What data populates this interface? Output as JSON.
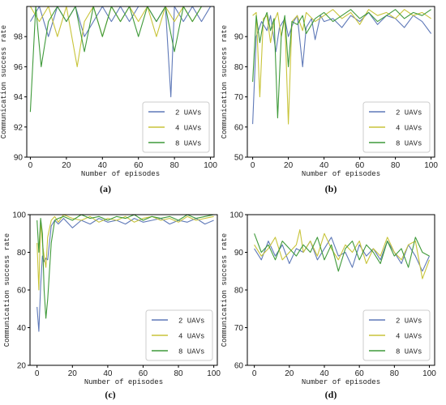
{
  "colors": {
    "2uav": "#5f79b8",
    "4uav": "#c8c43a",
    "8uav": "#3f9a3a"
  },
  "chart_data": [
    {
      "panel_label": "(a)",
      "type": "line",
      "xlabel": "Number of episodes",
      "ylabel": "Communication success rate",
      "xlim": [
        -2,
        102
      ],
      "ylim": [
        90,
        100
      ],
      "xticks": [
        0,
        20,
        40,
        60,
        80,
        100
      ],
      "yticks": [
        90,
        92,
        94,
        96,
        98
      ],
      "legend_loc": "lower-right",
      "series": [
        {
          "name": "2 UAVs",
          "color_key": "2uav",
          "x": [
            0,
            5,
            10,
            15,
            20,
            25,
            30,
            35,
            40,
            45,
            50,
            55,
            60,
            65,
            70,
            75,
            78,
            80,
            85,
            90,
            95,
            100
          ],
          "y": [
            99,
            100,
            98,
            100,
            99,
            100,
            98,
            99,
            100,
            99,
            100,
            99,
            100,
            100,
            99,
            100,
            94,
            100,
            99,
            100,
            99,
            100
          ]
        },
        {
          "name": "4 UAVs",
          "color_key": "4uav",
          "x": [
            0,
            5,
            10,
            15,
            20,
            26,
            30,
            35,
            40,
            45,
            50,
            55,
            60,
            65,
            70,
            75,
            80,
            85,
            90,
            95,
            100
          ],
          "y": [
            100,
            99,
            100,
            98,
            100,
            96,
            99,
            100,
            98,
            100,
            99,
            100,
            99,
            100,
            98,
            100,
            99,
            100,
            99,
            100,
            100
          ]
        },
        {
          "name": "8 UAVs",
          "color_key": "8uav",
          "x": [
            0,
            3,
            6,
            10,
            15,
            20,
            25,
            30,
            35,
            40,
            45,
            50,
            55,
            60,
            65,
            70,
            75,
            80,
            85,
            90,
            95,
            100
          ],
          "y": [
            93,
            100,
            96,
            99,
            100,
            99,
            100,
            97,
            100,
            98,
            100,
            99,
            100,
            98,
            100,
            99,
            100,
            97,
            100,
            99,
            100,
            100
          ]
        }
      ]
    },
    {
      "panel_label": "(b)",
      "type": "line",
      "xlabel": "Number of episodes",
      "ylabel": "Communication success rate",
      "xlim": [
        -3,
        102
      ],
      "ylim": [
        50,
        100
      ],
      "xticks": [
        0,
        20,
        40,
        60,
        80,
        100
      ],
      "yticks": [
        50,
        60,
        70,
        80,
        90
      ],
      "legend_loc": "lower-right",
      "series": [
        {
          "name": "2 UAVs",
          "color_key": "2uav",
          "x": [
            0,
            2,
            5,
            8,
            10,
            13,
            15,
            18,
            20,
            23,
            25,
            28,
            30,
            33,
            35,
            38,
            40,
            45,
            50,
            55,
            60,
            65,
            70,
            75,
            80,
            85,
            90,
            95,
            100
          ],
          "y": [
            61,
            90,
            95,
            92,
            97,
            85,
            93,
            96,
            90,
            95,
            97,
            80,
            93,
            96,
            89,
            97,
            95,
            96,
            93,
            97,
            95,
            98,
            94,
            97,
            96,
            93,
            97,
            95,
            91
          ]
        },
        {
          "name": "4 UAVs",
          "color_key": "4uav",
          "x": [
            0,
            2,
            4,
            6,
            8,
            10,
            12,
            14,
            16,
            18,
            20,
            22,
            25,
            28,
            30,
            35,
            40,
            45,
            50,
            55,
            60,
            65,
            70,
            75,
            80,
            85,
            90,
            95,
            100
          ],
          "y": [
            97,
            98,
            70,
            96,
            97,
            88,
            95,
            98,
            90,
            96,
            61,
            95,
            97,
            92,
            98,
            95,
            97,
            99,
            96,
            98,
            94,
            99,
            97,
            98,
            96,
            99,
            97,
            98,
            96
          ]
        },
        {
          "name": "8 UAVs",
          "color_key": "8uav",
          "x": [
            0,
            2,
            4,
            6,
            8,
            10,
            12,
            14,
            16,
            18,
            20,
            22,
            25,
            28,
            30,
            35,
            40,
            45,
            50,
            55,
            60,
            65,
            70,
            75,
            80,
            85,
            90,
            95,
            100
          ],
          "y": [
            75,
            97,
            88,
            95,
            98,
            92,
            96,
            63,
            90,
            97,
            80,
            95,
            94,
            97,
            91,
            96,
            98,
            95,
            97,
            99,
            96,
            98,
            95,
            97,
            99,
            96,
            98,
            97,
            99
          ]
        }
      ]
    },
    {
      "panel_label": "(c)",
      "type": "line",
      "xlabel": "Number of episodes",
      "ylabel": "Communication success rate",
      "xlim": [
        -4,
        102
      ],
      "ylim": [
        20,
        100
      ],
      "xticks": [
        0,
        20,
        40,
        60,
        80,
        100
      ],
      "yticks": [
        20,
        40,
        60,
        80,
        100
      ],
      "legend_loc": "lower-right",
      "series": [
        {
          "name": "2 UAVs",
          "color_key": "2uav",
          "x": [
            0,
            1,
            2,
            3,
            4,
            5,
            6,
            8,
            10,
            12,
            15,
            20,
            25,
            30,
            35,
            40,
            45,
            50,
            55,
            60,
            65,
            70,
            75,
            80,
            85,
            90,
            95,
            100
          ],
          "y": [
            51,
            38,
            62,
            78,
            75,
            77,
            76,
            94,
            97,
            95,
            98,
            93,
            97,
            95,
            98,
            96,
            97,
            95,
            98,
            96,
            97,
            98,
            95,
            97,
            96,
            98,
            95,
            97
          ]
        },
        {
          "name": "4 UAVs",
          "color_key": "4uav",
          "x": [
            0,
            1,
            2,
            3,
            4,
            5,
            6,
            8,
            10,
            12,
            15,
            20,
            25,
            30,
            35,
            40,
            45,
            50,
            55,
            60,
            65,
            70,
            75,
            80,
            85,
            90,
            95,
            100
          ],
          "y": [
            85,
            60,
            97,
            85,
            78,
            72,
            88,
            97,
            99,
            96,
            100,
            98,
            97,
            99,
            96,
            98,
            97,
            99,
            96,
            98,
            99,
            97,
            98,
            96,
            99,
            97,
            98,
            99
          ]
        },
        {
          "name": "8 UAVs",
          "color_key": "8uav",
          "x": [
            0,
            1,
            2,
            3,
            4,
            5,
            6,
            8,
            10,
            12,
            15,
            20,
            25,
            30,
            35,
            40,
            45,
            50,
            55,
            60,
            65,
            70,
            75,
            80,
            85,
            90,
            95,
            100
          ],
          "y": [
            97,
            80,
            98,
            90,
            60,
            45,
            55,
            85,
            97,
            98,
            99,
            97,
            100,
            98,
            99,
            97,
            99,
            98,
            100,
            97,
            99,
            98,
            99,
            97,
            100,
            98,
            99,
            100
          ]
        }
      ]
    },
    {
      "panel_label": "(d)",
      "type": "line",
      "xlabel": "Number of episodes",
      "ylabel": "Communication success rate",
      "xlim": [
        -4,
        103
      ],
      "ylim": [
        60,
        100
      ],
      "xticks": [
        0,
        20,
        40,
        60,
        80,
        100
      ],
      "yticks": [
        60,
        70,
        80,
        90,
        100
      ],
      "legend_loc": "lower-right",
      "series": [
        {
          "name": "2 UAVs",
          "color_key": "2uav",
          "x": [
            0,
            4,
            8,
            12,
            16,
            20,
            24,
            28,
            32,
            36,
            40,
            44,
            48,
            52,
            56,
            60,
            64,
            68,
            72,
            76,
            80,
            84,
            88,
            92,
            96,
            100
          ],
          "y": [
            91,
            88,
            93,
            89,
            92,
            87,
            91,
            90,
            93,
            88,
            91,
            94,
            89,
            90,
            86,
            92,
            89,
            91,
            88,
            93,
            90,
            87,
            92,
            89,
            85,
            89
          ]
        },
        {
          "name": "4 UAVs",
          "color_key": "4uav",
          "x": [
            0,
            4,
            8,
            12,
            16,
            20,
            24,
            26,
            28,
            32,
            36,
            40,
            44,
            48,
            52,
            56,
            60,
            64,
            68,
            72,
            76,
            80,
            84,
            88,
            92,
            96,
            100
          ],
          "y": [
            92,
            89,
            91,
            94,
            88,
            90,
            92,
            96,
            90,
            93,
            89,
            95,
            91,
            88,
            92,
            90,
            93,
            87,
            91,
            89,
            94,
            90,
            88,
            92,
            93,
            83,
            88
          ]
        },
        {
          "name": "8 UAVs",
          "color_key": "8uav",
          "x": [
            0,
            4,
            8,
            12,
            16,
            20,
            24,
            28,
            32,
            36,
            40,
            44,
            48,
            52,
            56,
            60,
            64,
            68,
            72,
            76,
            80,
            84,
            88,
            92,
            96,
            100
          ],
          "y": [
            95,
            90,
            92,
            88,
            93,
            91,
            89,
            92,
            90,
            94,
            88,
            92,
            85,
            91,
            93,
            88,
            92,
            90,
            87,
            93,
            89,
            91,
            86,
            94,
            90,
            89
          ]
        }
      ]
    }
  ]
}
